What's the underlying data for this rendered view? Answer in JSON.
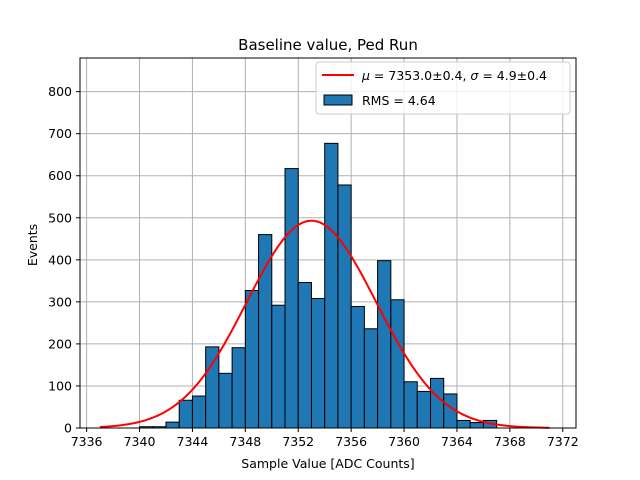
{
  "chart_data": {
    "type": "bar",
    "title": "Baseline value, Ped Run",
    "xlabel": "Sample Value [ADC Counts]",
    "ylabel": "Events",
    "xlim": [
      7335.5,
      7373
    ],
    "ylim": [
      0,
      880
    ],
    "xticks": [
      7336,
      7340,
      7344,
      7348,
      7352,
      7356,
      7360,
      7364,
      7368,
      7372
    ],
    "yticks": [
      0,
      100,
      200,
      300,
      400,
      500,
      600,
      700,
      800
    ],
    "grid": true,
    "legend_position": "top-right",
    "bin_width": 1,
    "histogram": {
      "name": "RMS = 4.64",
      "color": "#1f77b4",
      "edgecolor": "#000000",
      "bin_starts": [
        7340,
        7341,
        7342,
        7343,
        7344,
        7345,
        7346,
        7347,
        7348,
        7349,
        7350,
        7351,
        7352,
        7353,
        7354,
        7355,
        7356,
        7357,
        7358,
        7359,
        7360,
        7361,
        7362,
        7363,
        7364,
        7365,
        7366
      ],
      "counts": [
        3,
        3,
        14,
        66,
        76,
        193,
        130,
        191,
        327,
        460,
        292,
        617,
        346,
        308,
        677,
        578,
        289,
        236,
        398,
        305,
        110,
        87,
        118,
        81,
        18,
        13,
        18
      ]
    },
    "fit": {
      "name_mu": "7353.0±0.4",
      "name_sigma": "4.9±0.4",
      "color": "#ff0000",
      "mu": 7353.0,
      "sigma": 4.9,
      "amplitude": 493,
      "x_range": [
        7337,
        7371
      ]
    },
    "legend": {
      "fit_label_prefix_mu": "μ",
      "fit_label_eq": " = ",
      "fit_label_sep": ", ",
      "fit_label_prefix_sigma": "σ",
      "hist_label": "RMS = 4.64"
    }
  }
}
